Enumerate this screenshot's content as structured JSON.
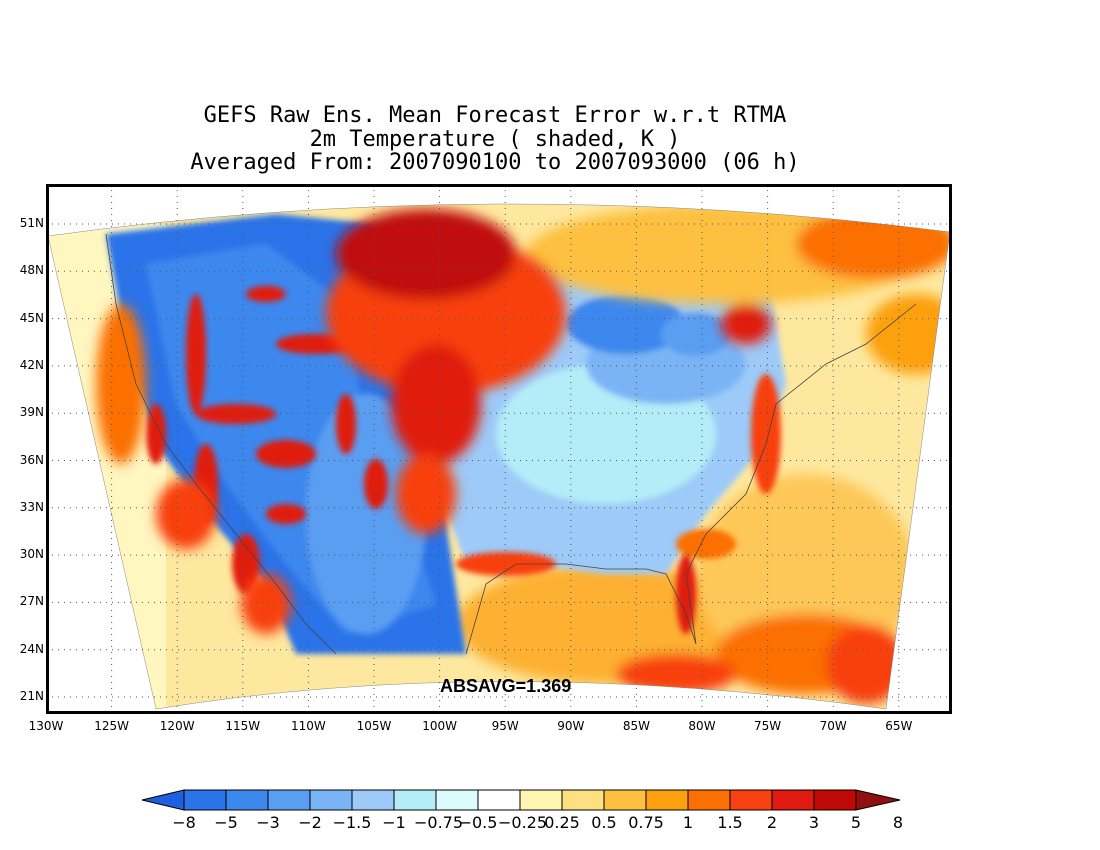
{
  "title": {
    "line1": "GEFS Raw Ens. Mean Forecast Error w.r.t RTMA",
    "line2": "2m Temperature ( shaded, K )",
    "line3": "Averaged From: 2007090100 to 2007093000 (06 h)"
  },
  "stat": {
    "label": "ABSAVG=1.369"
  },
  "map": {
    "lat_labels": [
      "51N",
      "48N",
      "45N",
      "42N",
      "39N",
      "36N",
      "33N",
      "30N",
      "27N",
      "24N",
      "21N"
    ],
    "lon_labels": [
      "130W",
      "125W",
      "120W",
      "115W",
      "110W",
      "105W",
      "100W",
      "95W",
      "90W",
      "85W",
      "80W",
      "75W",
      "70W",
      "65W"
    ],
    "grid": true,
    "gridline_style": "dotted"
  },
  "colorbar": {
    "labels": [
      "−8",
      "−5",
      "−3",
      "−2",
      "−1.5",
      "−1",
      "−0.75",
      "−0.5",
      "−0.25",
      "0.25",
      "0.5",
      "0.75",
      "1",
      "1.5",
      "2",
      "3",
      "5",
      "8"
    ],
    "colors": [
      "#1e5fe0",
      "#2b73e8",
      "#3d88ee",
      "#5a9ef2",
      "#7ab4f5",
      "#9dcaf8",
      "#b4ecf8",
      "#dcfcfc",
      "#ffffff",
      "#fff6b0",
      "#fee080",
      "#fdc040",
      "#fca010",
      "#fb7000",
      "#f84010",
      "#e01a10",
      "#c00808",
      "#901010"
    ]
  },
  "style": {
    "warm_accent": "#e01a10",
    "cold_accent": "#3d88ee"
  }
}
